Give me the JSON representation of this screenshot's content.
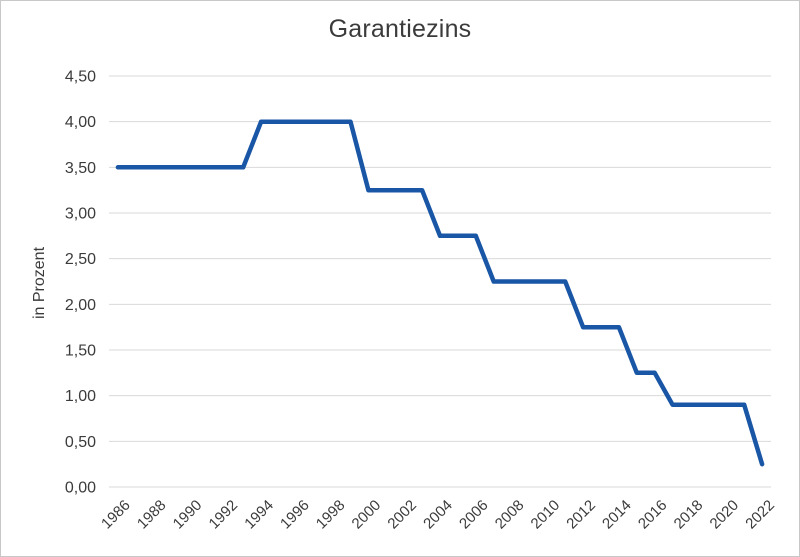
{
  "chart_data": {
    "type": "line",
    "title": "Garantiezins",
    "xlabel": "",
    "ylabel": "in Prozent",
    "x": [
      1986,
      1987,
      1988,
      1989,
      1990,
      1991,
      1992,
      1993,
      1994,
      1995,
      1996,
      1997,
      1998,
      1999,
      2000,
      2001,
      2002,
      2003,
      2004,
      2005,
      2006,
      2007,
      2008,
      2009,
      2010,
      2011,
      2012,
      2013,
      2014,
      2015,
      2016,
      2017,
      2018,
      2019,
      2020,
      2021,
      2022
    ],
    "values": [
      3.5,
      3.5,
      3.5,
      3.5,
      3.5,
      3.5,
      3.5,
      3.5,
      4.0,
      4.0,
      4.0,
      4.0,
      4.0,
      4.0,
      3.25,
      3.25,
      3.25,
      3.25,
      2.75,
      2.75,
      2.75,
      2.25,
      2.25,
      2.25,
      2.25,
      2.25,
      1.75,
      1.75,
      1.75,
      1.25,
      1.25,
      0.9,
      0.9,
      0.9,
      0.9,
      0.9,
      0.25
    ],
    "ylim": [
      0,
      4.5
    ],
    "ytick_step": 0.5,
    "ytick_labels": [
      "0,00",
      "0,50",
      "1,00",
      "1,50",
      "2,00",
      "2,50",
      "3,00",
      "3,50",
      "4,00",
      "4,50"
    ],
    "xtick_labels": [
      "1986",
      "1988",
      "1990",
      "1992",
      "1994",
      "1996",
      "1998",
      "2000",
      "2002",
      "2004",
      "2006",
      "2008",
      "2010",
      "2012",
      "2014",
      "2016",
      "2018",
      "2020",
      "2022"
    ],
    "grid": true,
    "legend": "none",
    "line_color": "#1956A6",
    "grid_color": "#D9D9D9",
    "text_color": "#3B3B3B",
    "background": "#FFFFFF",
    "border_color": "#C8C8C8"
  }
}
